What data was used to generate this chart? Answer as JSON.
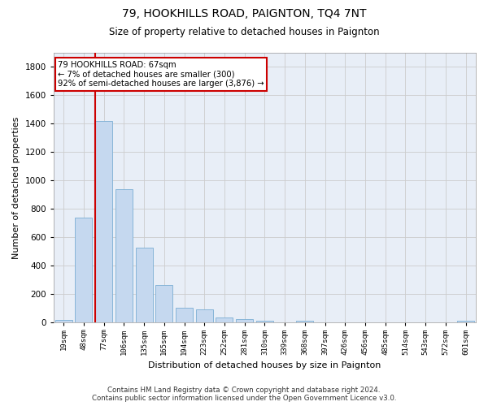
{
  "title1": "79, HOOKHILLS ROAD, PAIGNTON, TQ4 7NT",
  "title2": "Size of property relative to detached houses in Paignton",
  "xlabel": "Distribution of detached houses by size in Paignton",
  "ylabel": "Number of detached properties",
  "footer1": "Contains HM Land Registry data © Crown copyright and database right 2024.",
  "footer2": "Contains public sector information licensed under the Open Government Licence v3.0.",
  "categories": [
    "19sqm",
    "48sqm",
    "77sqm",
    "106sqm",
    "135sqm",
    "165sqm",
    "194sqm",
    "223sqm",
    "252sqm",
    "281sqm",
    "310sqm",
    "339sqm",
    "368sqm",
    "397sqm",
    "426sqm",
    "456sqm",
    "485sqm",
    "514sqm",
    "543sqm",
    "572sqm",
    "601sqm"
  ],
  "values": [
    22,
    740,
    1420,
    940,
    530,
    265,
    105,
    95,
    37,
    28,
    15,
    0,
    15,
    0,
    0,
    0,
    0,
    0,
    0,
    0,
    15
  ],
  "bar_color": "#c5d8ef",
  "bar_edge_color": "#7aaed4",
  "red_line_color": "#cc0000",
  "annotation_line1": "79 HOOKHILLS ROAD: 67sqm",
  "annotation_line2": "← 7% of detached houses are smaller (300)",
  "annotation_line3": "92% of semi-detached houses are larger (3,876) →",
  "annotation_box_color": "#ffffff",
  "annotation_box_edge_color": "#cc0000",
  "ylim": [
    0,
    1900
  ],
  "yticks": [
    0,
    200,
    400,
    600,
    800,
    1000,
    1200,
    1400,
    1600,
    1800
  ],
  "grid_color": "#cccccc",
  "background_color": "#e8eef7",
  "title1_fontsize": 10,
  "title2_fontsize": 8.5,
  "ylabel_fontsize": 8,
  "xlabel_fontsize": 8,
  "footer_fontsize": 6.2
}
